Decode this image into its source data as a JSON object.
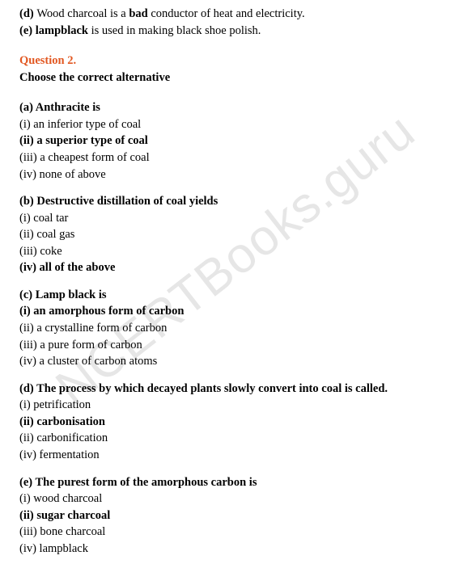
{
  "watermark": "NCERTBooks.guru",
  "intro": {
    "d_prefix": "(d) ",
    "d_text1": "Wood charcoal is a ",
    "d_bold": "bad",
    "d_text2": " conductor of heat and electricity.",
    "e_prefix": "(e) lampblack",
    "e_text": " is used in making black shoe polish."
  },
  "q2": {
    "label": "Question 2.",
    "prompt": "Choose the correct alternative"
  },
  "a": {
    "stem_prefix": "(a) ",
    "stem": "Anthracite is",
    "i": "(i) an inferior type of coal",
    "ii": "(ii) a superior type of coal",
    "iii": "(iii) a cheapest form of coal",
    "iv": "(iv) none of above"
  },
  "b": {
    "stem": "(b) Destructive distillation of coal yields",
    "i": "(i) coal tar",
    "ii": "(ii) coal gas",
    "iii": "(iii) coke",
    "iv": "(iv) all of the above"
  },
  "c": {
    "stem": "(c) Lamp black is",
    "i": "(i) an amorphous form of carbon",
    "ii": "(ii) a crystalline form of carbon",
    "iii": "(iii) a pure form of carbon",
    "iv": "(iv) a cluster of carbon atoms"
  },
  "d": {
    "stem": "(d) The process by which decayed plants slowly convert into coal is called.",
    "i": "(i) petrification",
    "ii": "(ii) carbonisation",
    "ii2": "(ii) carbonification",
    "iv": "(iv) fermentation"
  },
  "e": {
    "stem": "(e) The purest form of the amorphous carbon is",
    "i": "(i) wood charcoal",
    "ii": "(ii) sugar charcoal",
    "iii": "(iii) bone charcoal",
    "iv": "(iv) lampblack"
  }
}
